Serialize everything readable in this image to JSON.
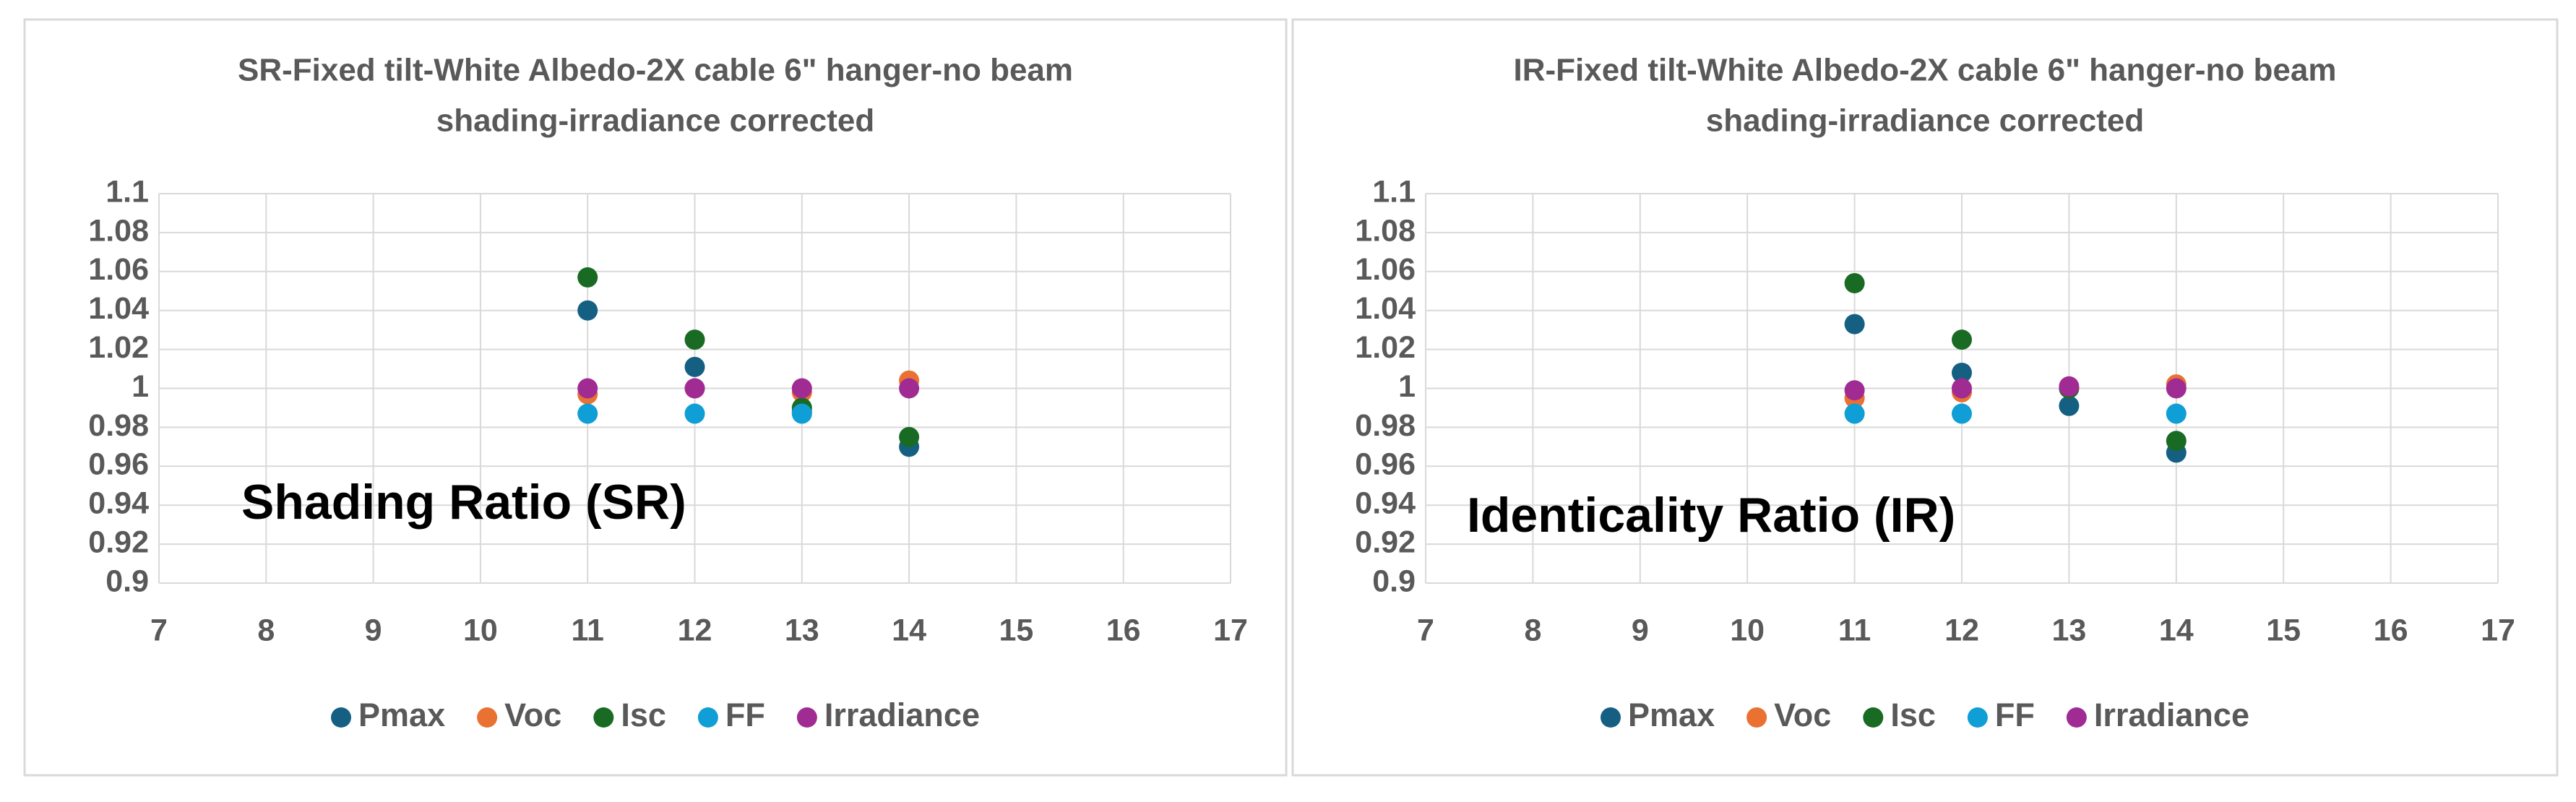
{
  "chart_data": [
    {
      "type": "scatter",
      "title": [
        "SR-Fixed tilt-White Albedo-2X cable 6\" hanger-no beam",
        "shading-irradiance  corrected"
      ],
      "annotation": "Shading Ratio (SR)",
      "xlim": [
        7,
        17
      ],
      "xticks": [
        7,
        8,
        9,
        10,
        11,
        12,
        13,
        14,
        15,
        16,
        17
      ],
      "ylim": [
        0.9,
        1.1
      ],
      "yticks": [
        0.9,
        0.92,
        0.94,
        0.96,
        0.98,
        1,
        1.02,
        1.04,
        1.06,
        1.08,
        1.1
      ],
      "grid": true,
      "legend": "bottom",
      "x": [
        11,
        12,
        13,
        14
      ],
      "series": [
        {
          "name": "Pmax",
          "color": "#156082",
          "values": [
            1.04,
            1.011,
            0.988,
            0.97
          ]
        },
        {
          "name": "Voc",
          "color": "#e97132",
          "values": [
            0.997,
            1.0,
            0.998,
            1.004
          ]
        },
        {
          "name": "Isc",
          "color": "#196b24",
          "values": [
            1.057,
            1.025,
            0.99,
            0.975
          ]
        },
        {
          "name": "FF",
          "color": "#0f9ed5",
          "values": [
            0.987,
            0.987,
            0.987,
            null
          ]
        },
        {
          "name": "Irradiance",
          "color": "#a02b93",
          "values": [
            1.0,
            1.0,
            1.0,
            1.0
          ]
        }
      ]
    },
    {
      "type": "scatter",
      "title": [
        "IR-Fixed tilt-White Albedo-2X cable 6\" hanger-no beam",
        "shading-irradiance  corrected"
      ],
      "annotation": "Identicality Ratio (IR)",
      "xlim": [
        7,
        17
      ],
      "xticks": [
        7,
        8,
        9,
        10,
        11,
        12,
        13,
        14,
        15,
        16,
        17
      ],
      "ylim": [
        0.9,
        1.1
      ],
      "yticks": [
        0.9,
        0.92,
        0.94,
        0.96,
        0.98,
        1,
        1.02,
        1.04,
        1.06,
        1.08,
        1.1
      ],
      "grid": true,
      "legend": "bottom",
      "x": [
        11,
        12,
        13,
        14
      ],
      "series": [
        {
          "name": "Pmax",
          "color": "#156082",
          "values": [
            1.033,
            1.008,
            0.991,
            0.967
          ]
        },
        {
          "name": "Voc",
          "color": "#e97132",
          "values": [
            0.995,
            0.998,
            1.0,
            1.002
          ]
        },
        {
          "name": "Isc",
          "color": "#196b24",
          "values": [
            1.054,
            1.025,
            1.0,
            0.973
          ]
        },
        {
          "name": "FF",
          "color": "#0f9ed5",
          "values": [
            0.987,
            0.987,
            null,
            0.987
          ]
        },
        {
          "name": "Irradiance",
          "color": "#a02b93",
          "values": [
            0.999,
            1.0,
            1.001,
            1.0
          ]
        }
      ]
    }
  ]
}
